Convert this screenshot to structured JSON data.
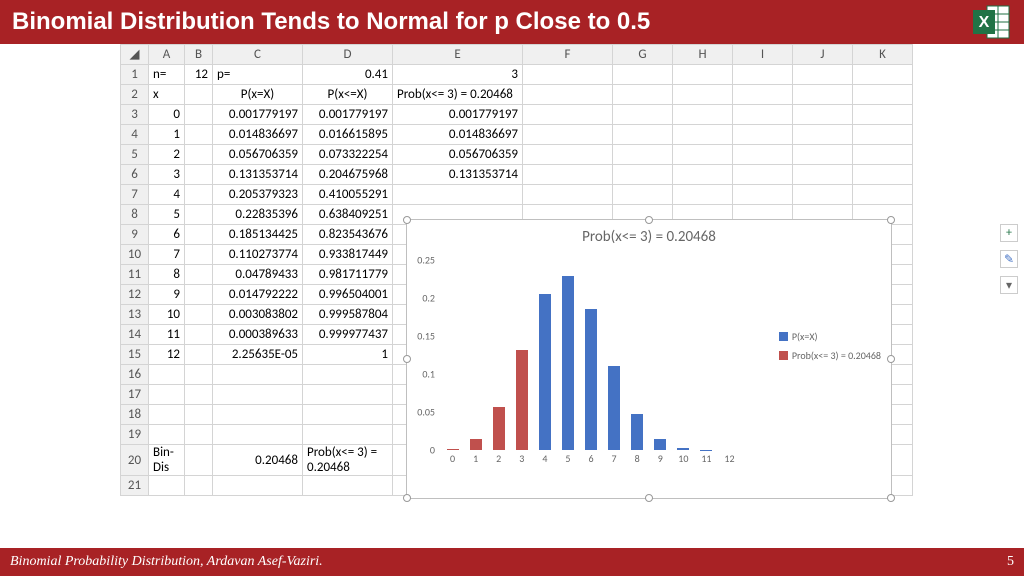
{
  "title": "Binomial Distribution Tends to Normal for p Close to 0.5",
  "footer": {
    "text": "Binomial Probability Distribution, Ardavan Asef-Vaziri.",
    "page": "5"
  },
  "columns": [
    "A",
    "B",
    "C",
    "D",
    "E",
    "F",
    "G",
    "H",
    "I",
    "J",
    "K"
  ],
  "row_headers": [
    "1",
    "2",
    "3",
    "4",
    "5",
    "6",
    "7",
    "8",
    "9",
    "10",
    "11",
    "12",
    "13",
    "14",
    "15",
    "16",
    "17",
    "18",
    "19",
    "20",
    "21"
  ],
  "cells": {
    "r1": {
      "A": "n=",
      "B": "12",
      "C": "p=",
      "D": "0.41",
      "E": "3"
    },
    "r2": {
      "A": "x",
      "C": "P(x=X)",
      "D": "P(x<=X)",
      "E": "Prob(x<= 3) = 0.20468"
    },
    "r3": {
      "A": "0",
      "C": "0.001779197",
      "D": "0.001779197",
      "E": "0.001779197"
    },
    "r4": {
      "A": "1",
      "C": "0.014836697",
      "D": "0.016615895",
      "E": "0.014836697"
    },
    "r5": {
      "A": "2",
      "C": "0.056706359",
      "D": "0.073322254",
      "E": "0.056706359"
    },
    "r6": {
      "A": "3",
      "C": "0.131353714",
      "D": "0.204675968",
      "E": "0.131353714"
    },
    "r7": {
      "A": "4",
      "C": "0.205379323",
      "D": "0.410055291"
    },
    "r8": {
      "A": "5",
      "C": "0.22835396",
      "D": "0.638409251"
    },
    "r9": {
      "A": "6",
      "C": "0.185134425",
      "D": "0.823543676"
    },
    "r10": {
      "A": "7",
      "C": "0.110273774",
      "D": "0.933817449"
    },
    "r11": {
      "A": "8",
      "C": "0.04789433",
      "D": "0.981711779"
    },
    "r12": {
      "A": "9",
      "C": "0.014792222",
      "D": "0.996504001"
    },
    "r13": {
      "A": "10",
      "C": "0.003083802",
      "D": "0.999587804"
    },
    "r14": {
      "A": "11",
      "C": "0.000389633",
      "D": "0.999977437"
    },
    "r15": {
      "A": "12",
      "C": "2.25635E-05",
      "D": "1"
    },
    "r20": {
      "A": "Bin-Dis",
      "C": "0.20468",
      "D": "Prob(x<= 3) = 0.20468"
    }
  },
  "chart": {
    "type": "bar",
    "title": "Prob(x<= 3) = 0.20468",
    "categories": [
      "0",
      "1",
      "2",
      "3",
      "4",
      "5",
      "6",
      "7",
      "8",
      "9",
      "10",
      "11",
      "12"
    ],
    "series1": {
      "name": "P(x=X)",
      "color": "#4472c4",
      "values": [
        0.00178,
        0.01484,
        0.05671,
        0.13135,
        0.20538,
        0.22835,
        0.18513,
        0.11027,
        0.04789,
        0.01479,
        0.00308,
        0.00039,
        2.26e-05
      ]
    },
    "series2": {
      "name": "Prob(x<= 3) = 0.20468",
      "color": "#c0504d",
      "values": [
        0.00178,
        0.01484,
        0.05671,
        0.13135,
        0,
        0,
        0,
        0,
        0,
        0,
        0,
        0,
        0
      ]
    },
    "ylim": [
      0,
      0.25
    ],
    "yticks": [
      0,
      0.05,
      0.1,
      0.15,
      0.2,
      0.25
    ],
    "ytick_labels": [
      "0",
      "0.05",
      "0.1",
      "0.15",
      "0.2",
      "0.25"
    ],
    "background": "#ffffff",
    "axis_color": "#666666"
  },
  "side_tools": [
    "+",
    "✎",
    "▾"
  ]
}
